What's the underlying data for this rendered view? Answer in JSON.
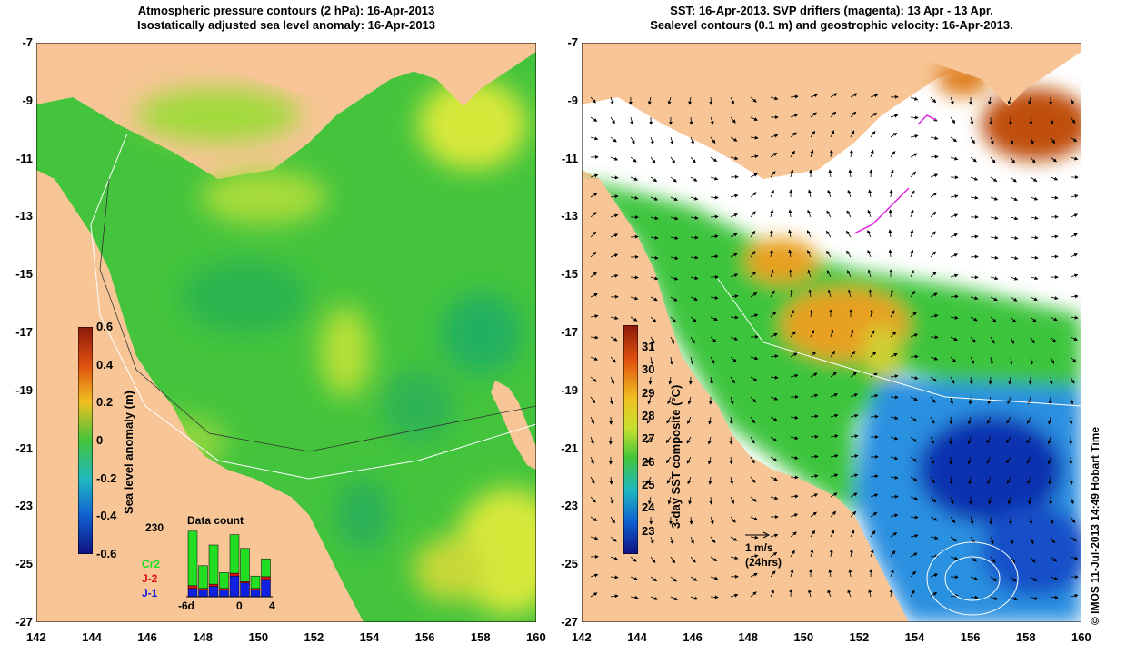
{
  "left_panel": {
    "title_line1": "Atmospheric pressure contours (2 hPa): 16-Apr-2013",
    "title_line2": "Isostatically adjusted sea level anomaly: 16-Apr-2013",
    "colorbar": {
      "title": "Sea level anomaly (m)",
      "ticks": [
        "0.6",
        "0.4",
        "0.2",
        "0",
        "-0.2",
        "-0.4",
        "-0.6"
      ]
    },
    "data_count": {
      "title": "Data count",
      "max_label": "230",
      "legend": [
        {
          "label": "Cr2",
          "color": "#22dd22"
        },
        {
          "label": "J-2",
          "color": "#e01010"
        },
        {
          "label": "J-1",
          "color": "#1020e0"
        }
      ],
      "xticks": [
        "-6d",
        "0",
        "4"
      ]
    }
  },
  "right_panel": {
    "title_line1": "SST: 16-Apr-2013. SVP drifters (magenta): 13 Apr - 13 Apr.",
    "title_line2": "Sealevel contours (0.1 m) and geostrophic velocity: 16-Apr-2013.",
    "colorbar": {
      "title": "3-day SST composite (°C)",
      "ticks": [
        "31",
        "30",
        "29",
        "28",
        "27",
        "26",
        "25",
        "24",
        "23"
      ]
    },
    "scale_arrow": {
      "line1": "1 m/s",
      "line2": "(24hrs)"
    }
  },
  "axes": {
    "x_ticks": [
      "142",
      "144",
      "146",
      "148",
      "150",
      "152",
      "154",
      "156",
      "158",
      "160"
    ],
    "y_ticks": [
      "-7",
      "-9",
      "-11",
      "-13",
      "-15",
      "-17",
      "-19",
      "-21",
      "-23",
      "-25",
      "-27"
    ]
  },
  "credit": "© IMOS 11-Jul-2013 14:49 Hobart Time",
  "colors": {
    "land": "#f7c596",
    "ocean_green": "#44c43c",
    "cloud": "#ffffff"
  }
}
